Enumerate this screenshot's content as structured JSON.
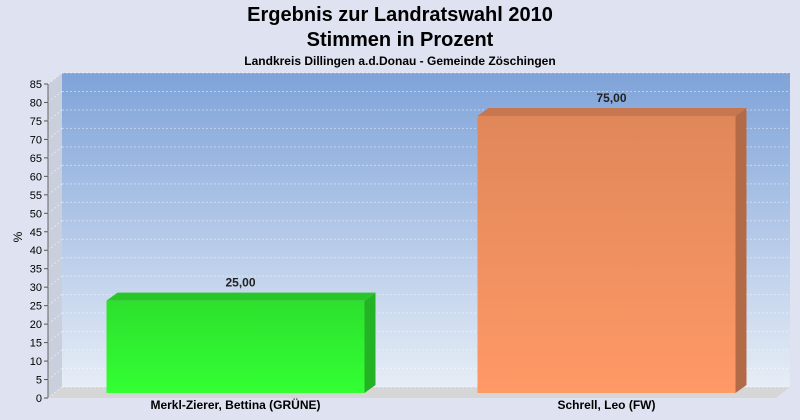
{
  "chart_data": {
    "type": "bar",
    "title": "Ergebnis zur Landratswahl 2010",
    "subtitle_line": "Stimmen in Prozent",
    "subtitle": "Landkreis Dillingen a.d.Donau - Gemeinde Zöschingen",
    "xlabel": "",
    "ylabel": "%",
    "ylim": [
      0,
      85
    ],
    "yticks": [
      0,
      5,
      10,
      15,
      20,
      25,
      30,
      35,
      40,
      45,
      50,
      55,
      60,
      65,
      70,
      75,
      80,
      85
    ],
    "grid": true,
    "categories": [
      "Merkl-Zierer, Bettina (GRÜNE)",
      "Schrell, Leo (FW)"
    ],
    "values": [
      25,
      75
    ],
    "data_labels": [
      "25,00",
      "75,00"
    ],
    "colors": [
      "#33ff33",
      "#ff9966"
    ],
    "plot_background": [
      "#7fa3d9",
      "#e6edf6"
    ]
  }
}
